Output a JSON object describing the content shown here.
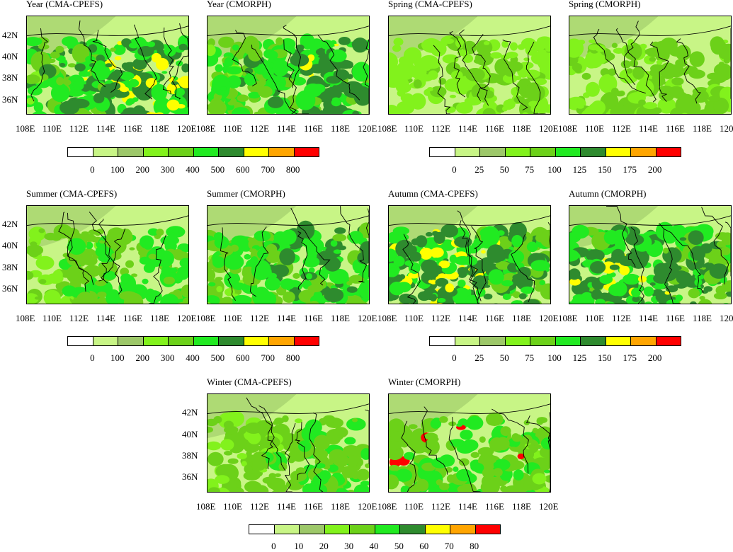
{
  "panels": [
    {
      "id": "p1",
      "title": "Year (CMA-CPEFS)",
      "intensity": 0.9,
      "hot": "se"
    },
    {
      "id": "p2",
      "title": "Year (CMORPH)",
      "intensity": 0.75,
      "hot": "mid"
    },
    {
      "id": "p3",
      "title": "Spring (CMA-CPEFS)",
      "intensity": 0.25,
      "hot": "none"
    },
    {
      "id": "p4",
      "title": "Spring (CMORPH)",
      "intensity": 0.3,
      "hot": "none"
    },
    {
      "id": "p5",
      "title": "Summer (CMA-CPEFS)",
      "intensity": 0.5,
      "hot": "se"
    },
    {
      "id": "p6",
      "title": "Summer (CMORPH)",
      "intensity": 0.65,
      "hot": "mid"
    },
    {
      "id": "p7",
      "title": "Autumn (CMA-CPEFS)",
      "intensity": 0.85,
      "hot": "sw"
    },
    {
      "id": "p8",
      "title": "Autumn (CMORPH)",
      "intensity": 0.8,
      "hot": "sw"
    },
    {
      "id": "p9",
      "title": "Winter (CMA-CPEFS)",
      "intensity": 0.45,
      "hot": "se"
    },
    {
      "id": "p10",
      "title": "Winter (CMORPH)",
      "intensity": 0.5,
      "hot": "spots"
    }
  ],
  "lat_labels": [
    "42N",
    "40N",
    "38N",
    "36N"
  ],
  "lon_labels": [
    "108E",
    "110E",
    "112E",
    "114E",
    "116E",
    "118E",
    "120E"
  ],
  "colors": [
    "#ffffff",
    "#c8f586",
    "#9dc869",
    "#82f21c",
    "#6cd119",
    "#21ea21",
    "#2e8b2e",
    "#ffff00",
    "#ffa500",
    "#ff0000"
  ],
  "colorbars": [
    {
      "id": "cb1",
      "labels": [
        "0",
        "100",
        "200",
        "300",
        "400",
        "500",
        "600",
        "700",
        "800"
      ]
    },
    {
      "id": "cb2",
      "labels": [
        "0",
        "25",
        "50",
        "75",
        "100",
        "125",
        "150",
        "175",
        "200"
      ]
    },
    {
      "id": "cb3",
      "labels": [
        "0",
        "100",
        "200",
        "300",
        "400",
        "500",
        "600",
        "700",
        "800"
      ]
    },
    {
      "id": "cb4",
      "labels": [
        "0",
        "25",
        "50",
        "75",
        "100",
        "125",
        "150",
        "175",
        "200"
      ]
    },
    {
      "id": "cb5",
      "labels": [
        "0",
        "10",
        "20",
        "30",
        "40",
        "50",
        "60",
        "70",
        "80"
      ]
    }
  ]
}
